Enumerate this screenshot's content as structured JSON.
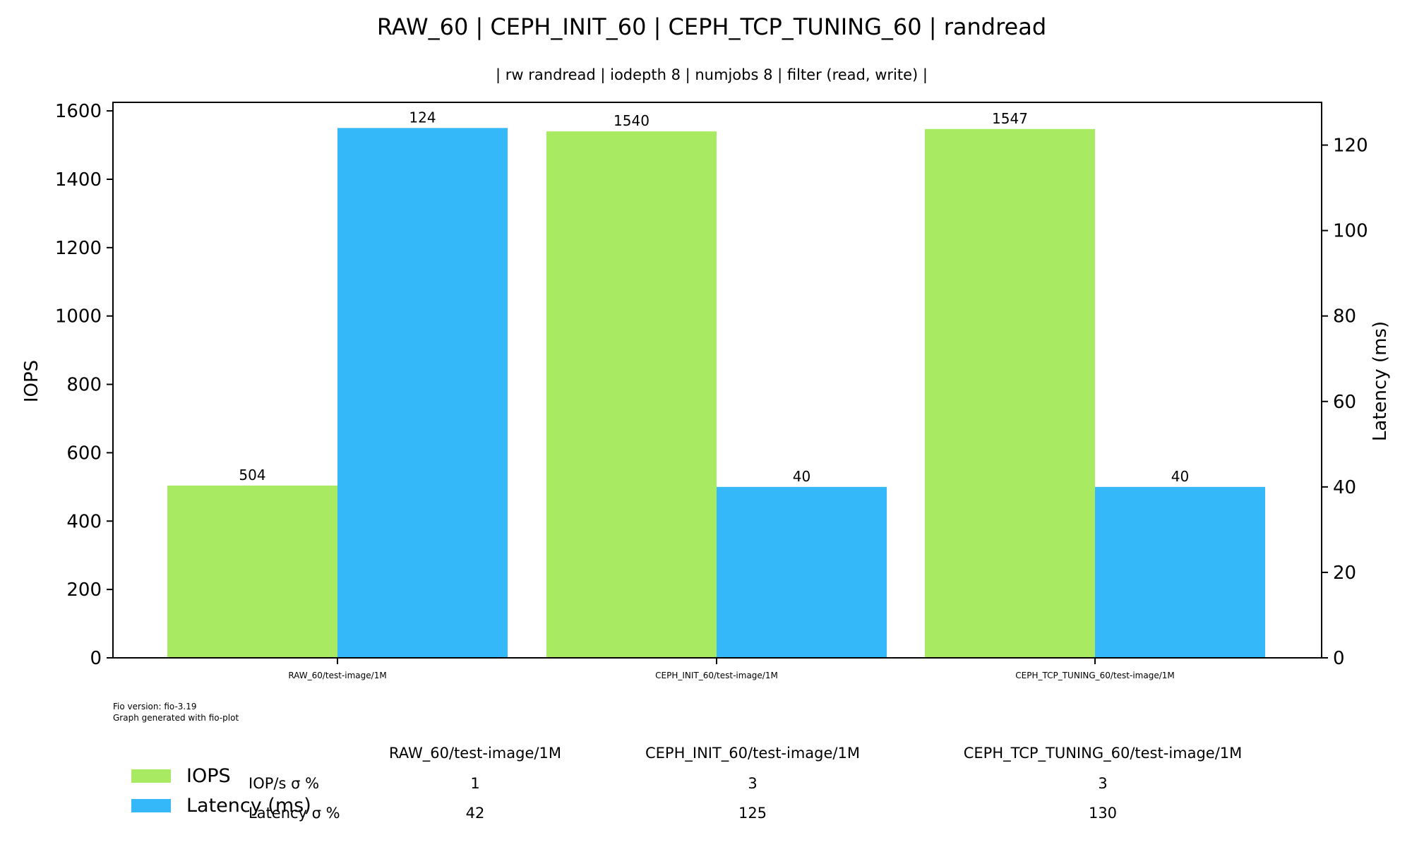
{
  "chart_data": {
    "type": "bar",
    "title": "RAW_60 | CEPH_INIT_60 | CEPH_TCP_TUNING_60 | randread",
    "subtitle": "| rw randread | iodepth 8 | numjobs 8 | filter (read, write) |",
    "categories": [
      "RAW_60/test-image/1M",
      "CEPH_INIT_60/test-image/1M",
      "CEPH_TCP_TUNING_60/test-image/1M"
    ],
    "series": [
      {
        "name": "IOPS",
        "axis": "left",
        "color": "#a8eb63",
        "values": [
          504,
          1540,
          1547
        ],
        "labels": [
          "504",
          "1540",
          "1547"
        ]
      },
      {
        "name": "Latency (ms)",
        "axis": "right",
        "color": "#35b8f9",
        "values": [
          124,
          40,
          40
        ],
        "labels": [
          "124",
          "40",
          "40"
        ]
      }
    ],
    "ylabel": "IOPS",
    "ylabel_right": "Latency (ms)",
    "ylim": [
      0,
      1625
    ],
    "ylim_right": [
      0,
      130
    ],
    "yticks": [
      0,
      200,
      400,
      600,
      800,
      1000,
      1200,
      1400,
      1600
    ],
    "yticks_right": [
      0,
      20,
      40,
      60,
      80,
      100,
      120
    ],
    "grid": false,
    "legend_position": "bottom-left"
  },
  "footer": {
    "fio_version": "Fio version: fio-3.19",
    "generated_by": "Graph generated with fio-plot"
  },
  "stats_table": {
    "columns": [
      "RAW_60/test-image/1M",
      "CEPH_INIT_60/test-image/1M",
      "CEPH_TCP_TUNING_60/test-image/1M"
    ],
    "rows": [
      {
        "label": "IOP/s σ %",
        "values": [
          "1",
          "3",
          "3"
        ]
      },
      {
        "label": "Latency σ %",
        "values": [
          "42",
          "125",
          "130"
        ]
      }
    ]
  }
}
